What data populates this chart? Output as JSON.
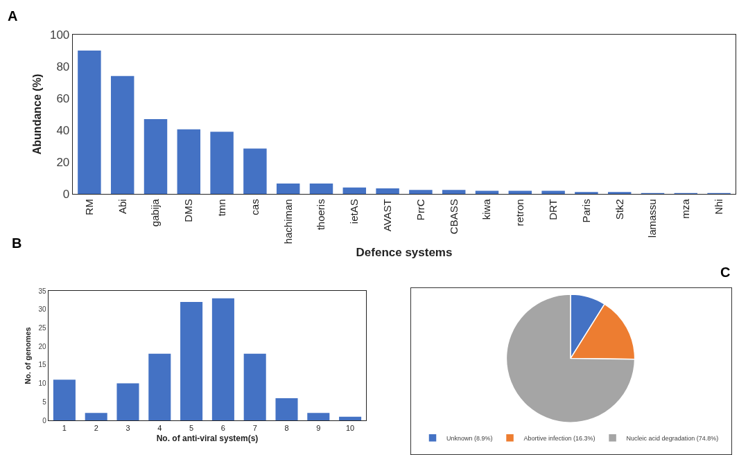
{
  "chart_data": [
    {
      "type": "bar",
      "annotations": [
        "A"
      ],
      "xlabel": "Defence systems",
      "ylabel": "Abundance (%)",
      "categories": [
        "RM",
        "Abi",
        "gabija",
        "DMS",
        "tmn",
        "cas",
        "hachiman",
        "thoeris",
        "ietAS",
        "AVAST",
        "PrrC",
        "CBASS",
        "kiwa",
        "retron",
        "DRT",
        "Paris",
        "Stk2",
        "lamassu",
        "mza",
        "Nhi"
      ],
      "values": [
        90,
        74,
        47,
        40.5,
        39,
        28.5,
        6.5,
        6.5,
        4,
        3.5,
        2.5,
        2.5,
        2,
        2,
        2,
        1.2,
        1.2,
        0.5,
        0.5,
        0.5
      ],
      "color": "#4472c4",
      "ylim": [
        0,
        100
      ],
      "yticks": [
        0,
        20,
        40,
        60,
        80,
        100
      ],
      "grid": false,
      "legend": false
    },
    {
      "type": "bar",
      "annotations": [
        "B"
      ],
      "xlabel": "No. of anti-viral system(s)",
      "ylabel": "No. of genomes",
      "categories": [
        "1",
        "2",
        "3",
        "4",
        "5",
        "6",
        "7",
        "8",
        "9",
        "10"
      ],
      "values": [
        11,
        2,
        10,
        18,
        32,
        33,
        18,
        6,
        2,
        1
      ],
      "color": "#4472c4",
      "ylim": [
        0,
        35
      ],
      "yticks": [
        0,
        5,
        10,
        15,
        20,
        25,
        30,
        35
      ],
      "grid": false,
      "legend": false
    },
    {
      "type": "pie",
      "annotations": [
        "C"
      ],
      "categories": [
        "Unknown (8.9%)",
        "Abortive infection (16.3%)",
        "Nucleic acid degradation (74.8%)"
      ],
      "values": [
        8.9,
        16.3,
        74.8
      ],
      "colors": [
        "#4472c4",
        "#ed7d31",
        "#a5a5a5"
      ],
      "legend": "bottom"
    }
  ]
}
